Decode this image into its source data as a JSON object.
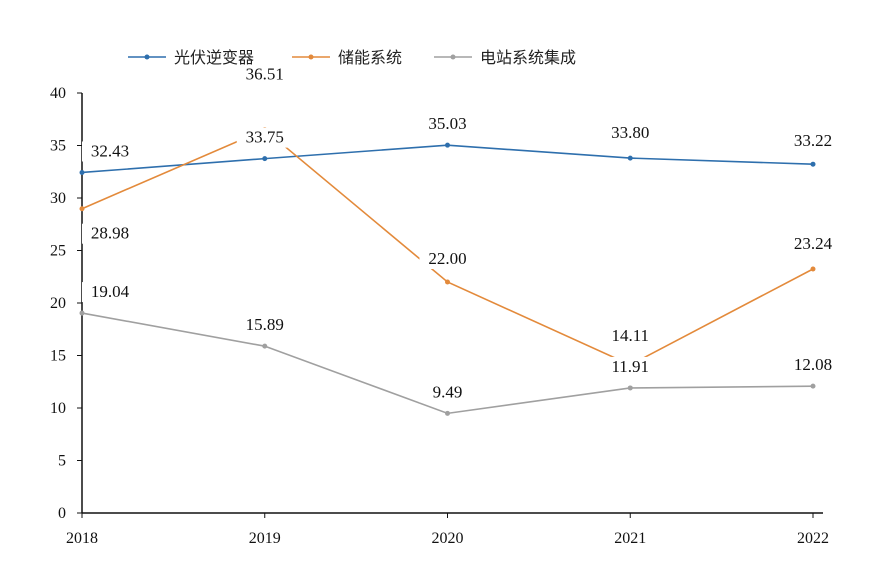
{
  "chart_data": {
    "type": "line",
    "title": "",
    "xlabel": "",
    "ylabel": "",
    "categories": [
      "2018",
      "2019",
      "2020",
      "2021",
      "2022"
    ],
    "ylim": [
      0,
      40
    ],
    "yticks": [
      0,
      5,
      10,
      15,
      20,
      25,
      30,
      35,
      40
    ],
    "grid": false,
    "legend_position": "top",
    "series": [
      {
        "name": "光伏逆变器",
        "color": "#2e6fad",
        "values": [
          32.43,
          33.75,
          35.03,
          33.8,
          33.22
        ]
      },
      {
        "name": "储能系统",
        "color": "#e38a3b",
        "values": [
          28.98,
          36.51,
          22.0,
          14.11,
          23.24
        ]
      },
      {
        "name": "电站系统集成",
        "color": "#a0a0a0",
        "values": [
          19.04,
          15.89,
          9.49,
          11.91,
          12.08
        ]
      }
    ]
  }
}
